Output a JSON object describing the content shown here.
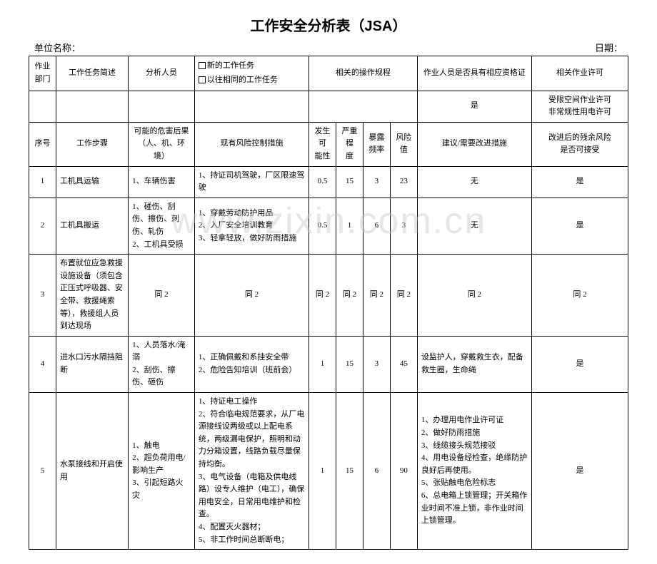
{
  "title": "工作安全分析表（JSA）",
  "meta": {
    "org_label": "单位名称：",
    "date_label": "日期："
  },
  "watermark": "www.zixin.com.cn",
  "header1": {
    "dept": "作业部门",
    "task_desc": "工作任务简述",
    "analyst": "分析人员",
    "task_type_new": "新的工作任务",
    "task_type_old": "以往相同的工作任务",
    "procedure": "相关的操作规程",
    "qualification": "作业人员是否具有相应资格证",
    "permit": "相关作业许可"
  },
  "header1_values": {
    "qualification": "是",
    "permit": "受限空间作业许可\n非常规性用电许可"
  },
  "header2": {
    "seq": "序号",
    "step": "工作步骤",
    "hazard": "可能的危害后果\n（人、机、环境）",
    "control": "现有风险控制措施",
    "prob": "发生可\n能性",
    "sev": "严重程\n度",
    "freq": "暴露\n频率",
    "risk": "风险值",
    "suggest": "建议/需要改进措施",
    "accept": "改进后的残余风险\n是否可接受"
  },
  "rows": [
    {
      "seq": "1",
      "step": "工机具运输",
      "hazard": "1、车辆伤害",
      "control": "1、持证司机驾驶，厂区限速驾驶",
      "prob": "0.5",
      "sev": "15",
      "freq": "3",
      "risk": "23",
      "suggest": "无",
      "accept": "是"
    },
    {
      "seq": "2",
      "step": "工机具搬运",
      "hazard": "1、碰伤、刮伤、擦伤、刺伤、轧伤\n2、工机具受损",
      "control": "1、穿戴劳动防护用品\n2、入厂安全培训教育\n3、轻拿轻放，做好防雨措施",
      "prob": "0.5",
      "sev": "1",
      "freq": "6",
      "risk": "3",
      "suggest": "无",
      "accept": "是"
    },
    {
      "seq": "3",
      "step": "布置就位应急救援设施设备（须包含正压式呼吸器、安全带、救援绳索等），救援组人员到达现场",
      "hazard": "同 2",
      "control": "同 2",
      "prob": "同 2",
      "sev": "同 2",
      "freq": "同 2",
      "risk": "同 2",
      "suggest": "同 2",
      "accept": "同 2"
    },
    {
      "seq": "4",
      "step": "进水口污水隔挡阻断",
      "hazard": "1、人员落水/淹溺\n2、刮伤、擦伤、砸伤",
      "control": "1、正确佩戴和系挂安全带\n2、危险告知培训（班前会）",
      "prob": "1",
      "sev": "15",
      "freq": "3",
      "risk": "45",
      "suggest": "设监护人，穿戴救生衣，配备救生圈，生命绳",
      "accept": "是"
    },
    {
      "seq": "5",
      "step": "水泵接线和开启使用",
      "hazard": "1、触电\n2、超负荷用电/影响生产\n3、引起短路火灾",
      "control": "1、持证电工操作\n2、符合临电规范要求，从厂电源接线设两级或以上配电系统，两级漏电保护，照明和动力分箱设置，线路负载尽量保持均衡。\n3、电气设备（电箱及供电线路）设专人维护（电工），确保用电安全，日常用电维护和检查。\n4、配置灭火器材；\n5、非工作时间总断断电；",
      "prob": "1",
      "sev": "15",
      "freq": "6",
      "risk": "90",
      "suggest": "1、办理用电作业许可证\n2、做好防雨措施\n3、线缆接头规范接驳\n4、用电设备经检查，绝缘防护良好后再使用。\n5、张贴触电危险标志\n6、总电箱上锁管理；开关箱作业时间不准上锁，非作业时间上锁管理。",
      "accept": "是"
    }
  ]
}
